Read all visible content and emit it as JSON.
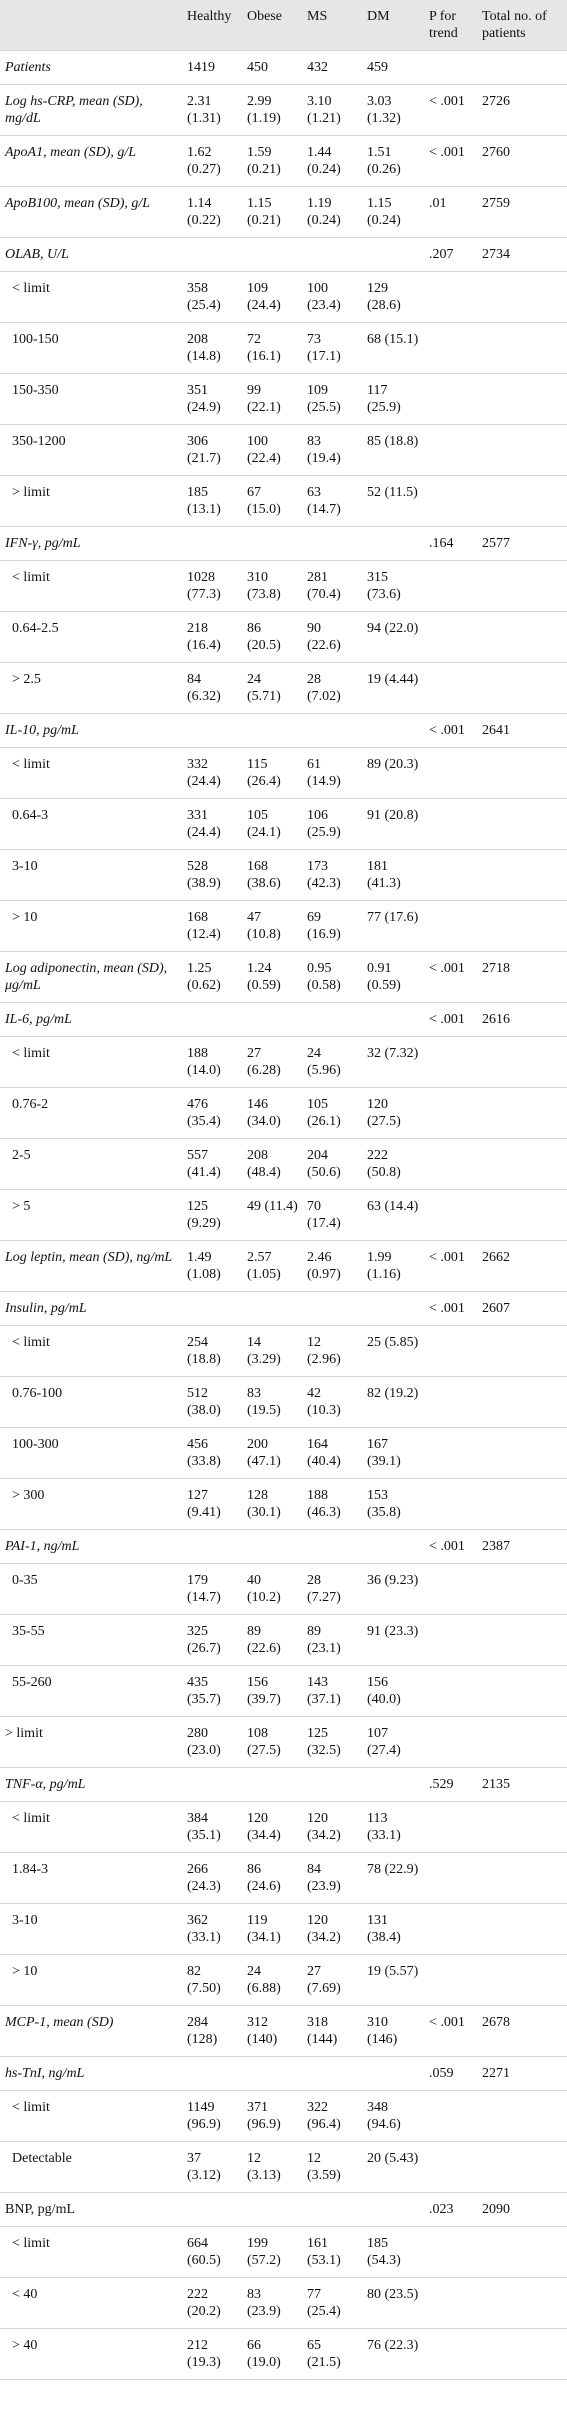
{
  "table": {
    "header": [
      "Healthy",
      "Obese",
      "MS",
      "DM",
      "P for trend",
      "Total no. of patients"
    ],
    "rows": [
      {
        "label": "Patients",
        "italic": true,
        "cells": [
          "1419",
          "450",
          "432",
          "459",
          null,
          null
        ]
      },
      {
        "label": "Log hs-CRP, mean (SD), mg/dL",
        "italic": true,
        "cells": [
          "2.31 (1.31)",
          "2.99 (1.19)",
          "3.10 (1.21)",
          "3.03 (1.32)",
          "< .001",
          "2726"
        ]
      },
      {
        "label": "ApoA1, mean (SD), g/L",
        "italic": true,
        "cells": [
          "1.62 (0.27)",
          "1.59 (0.21)",
          "1.44 (0.24)",
          "1.51 (0.26)",
          "< .001",
          "2760"
        ]
      },
      {
        "label": "ApoB100, mean (SD), g/L",
        "italic": true,
        "cells": [
          "1.14 (0.22)",
          "1.15 (0.21)",
          "1.19 (0.24)",
          "1.15 (0.24)",
          ".01",
          "2759"
        ]
      },
      {
        "label": "OLAB, U/L",
        "italic": true,
        "cells": [
          null,
          null,
          null,
          null,
          ".207",
          "2734"
        ]
      },
      {
        "label": "< limit",
        "sub": true,
        "cells": [
          "358 (25.4)",
          "109 (24.4)",
          "100 (23.4)",
          "129 (28.6)",
          null,
          null
        ]
      },
      {
        "label": "100-150",
        "sub": true,
        "cells": [
          "208 (14.8)",
          "72 (16.1)",
          "73 (17.1)",
          "68 (15.1)",
          null,
          null
        ]
      },
      {
        "label": "150-350",
        "sub": true,
        "cells": [
          "351 (24.9)",
          "99 (22.1)",
          "109 (25.5)",
          "117 (25.9)",
          null,
          null
        ]
      },
      {
        "label": "350-1200",
        "sub": true,
        "cells": [
          "306 (21.7)",
          "100 (22.4)",
          "83 (19.4)",
          "85 (18.8)",
          null,
          null
        ]
      },
      {
        "label": "> limit",
        "sub": true,
        "cells": [
          "185 (13.1)",
          "67 (15.0)",
          "63 (14.7)",
          "52 (11.5)",
          null,
          null
        ]
      },
      {
        "label": "IFN-γ, pg/mL",
        "italic": true,
        "cells": [
          null,
          null,
          null,
          null,
          ".164",
          "2577"
        ]
      },
      {
        "label": "< limit",
        "sub": true,
        "cells": [
          "1028 (77.3)",
          "310 (73.8)",
          "281 (70.4)",
          "315 (73.6)",
          null,
          null
        ]
      },
      {
        "label": "0.64-2.5",
        "sub": true,
        "cells": [
          "218 (16.4)",
          "86 (20.5)",
          "90 (22.6)",
          "94 (22.0)",
          null,
          null
        ]
      },
      {
        "label": "> 2.5",
        "sub": true,
        "cells": [
          "84 (6.32)",
          "24 (5.71)",
          "28 (7.02)",
          "19 (4.44)",
          null,
          null
        ]
      },
      {
        "label": "IL-10, pg/mL",
        "italic": true,
        "cells": [
          null,
          null,
          null,
          null,
          "< .001",
          "2641"
        ]
      },
      {
        "label": "< limit",
        "sub": true,
        "cells": [
          "332 (24.4)",
          "115 (26.4)",
          "61 (14.9)",
          "89 (20.3)",
          null,
          null
        ]
      },
      {
        "label": "0.64-3",
        "sub": true,
        "cells": [
          "331 (24.4)",
          "105 (24.1)",
          "106 (25.9)",
          "91 (20.8)",
          null,
          null
        ]
      },
      {
        "label": "3-10",
        "sub": true,
        "cells": [
          "528 (38.9)",
          "168 (38.6)",
          "173 (42.3)",
          "181 (41.3)",
          null,
          null
        ]
      },
      {
        "label": "> 10",
        "sub": true,
        "cells": [
          "168 (12.4)",
          "47 (10.8)",
          "69 (16.9)",
          "77 (17.6)",
          null,
          null
        ]
      },
      {
        "label": "Log adiponectin, mean (SD), μg/mL",
        "italic": true,
        "cells": [
          "1.25 (0.62)",
          "1.24 (0.59)",
          "0.95 (0.58)",
          "0.91 (0.59)",
          "< .001",
          "2718"
        ]
      },
      {
        "label": "IL-6, pg/mL",
        "italic": true,
        "cells": [
          null,
          null,
          null,
          null,
          "< .001",
          "2616"
        ]
      },
      {
        "label": "< limit",
        "sub": true,
        "cells": [
          "188 (14.0)",
          "27 (6.28)",
          "24 (5.96)",
          "32 (7.32)",
          null,
          null
        ]
      },
      {
        "label": "0.76-2",
        "sub": true,
        "cells": [
          "476 (35.4)",
          "146 (34.0)",
          "105 (26.1)",
          "120 (27.5)",
          null,
          null
        ]
      },
      {
        "label": "2-5",
        "sub": true,
        "cells": [
          "557 (41.4)",
          "208 (48.4)",
          "204 (50.6)",
          "222 (50.8)",
          null,
          null
        ]
      },
      {
        "label": "> 5",
        "sub": true,
        "cells": [
          "125 (9.29)",
          "49 (11.4)",
          "70 (17.4)",
          "63 (14.4)",
          null,
          null
        ]
      },
      {
        "label": "Log leptin, mean (SD), ng/mL",
        "italic": true,
        "cells": [
          "1.49 (1.08)",
          "2.57 (1.05)",
          "2.46 (0.97)",
          "1.99 (1.16)",
          "< .001",
          "2662"
        ]
      },
      {
        "label": "Insulin, pg/mL",
        "italic": true,
        "cells": [
          null,
          null,
          null,
          null,
          "< .001",
          "2607"
        ]
      },
      {
        "label": "< limit",
        "sub": true,
        "cells": [
          "254 (18.8)",
          "14 (3.29)",
          "12 (2.96)",
          "25 (5.85)",
          null,
          null
        ]
      },
      {
        "label": "0.76-100",
        "sub": true,
        "cells": [
          "512 (38.0)",
          "83 (19.5)",
          "42 (10.3)",
          "82 (19.2)",
          null,
          null
        ]
      },
      {
        "label": "100-300",
        "sub": true,
        "cells": [
          "456 (33.8)",
          "200 (47.1)",
          "164 (40.4)",
          "167 (39.1)",
          null,
          null
        ]
      },
      {
        "label": "> 300",
        "sub": true,
        "cells": [
          "127 (9.41)",
          "128 (30.1)",
          "188 (46.3)",
          "153 (35.8)",
          null,
          null
        ]
      },
      {
        "label": "PAI-1, ng/mL",
        "italic": true,
        "cells": [
          null,
          null,
          null,
          null,
          "< .001",
          "2387"
        ]
      },
      {
        "label": "0-35",
        "sub": true,
        "cells": [
          "179 (14.7)",
          "40 (10.2)",
          "28 (7.27)",
          "36 (9.23)",
          null,
          null
        ]
      },
      {
        "label": "35-55",
        "sub": true,
        "cells": [
          "325 (26.7)",
          "89 (22.6)",
          "89 (23.1)",
          "91 (23.3)",
          null,
          null
        ]
      },
      {
        "label": "55-260",
        "sub": true,
        "cells": [
          "435 (35.7)",
          "156 (39.7)",
          "143 (37.1)",
          "156 (40.0)",
          null,
          null
        ]
      },
      {
        "label": "> limit",
        "cells": [
          "280 (23.0)",
          "108 (27.5)",
          "125 (32.5)",
          "107 (27.4)",
          null,
          null
        ]
      },
      {
        "label": "TNF-α, pg/mL",
        "italic": true,
        "cells": [
          null,
          null,
          null,
          null,
          ".529",
          "2135"
        ]
      },
      {
        "label": "< limit",
        "sub": true,
        "cells": [
          "384 (35.1)",
          "120 (34.4)",
          "120 (34.2)",
          "113 (33.1)",
          null,
          null
        ]
      },
      {
        "label": "1.84-3",
        "sub": true,
        "cells": [
          "266 (24.3)",
          "86 (24.6)",
          "84 (23.9)",
          "78 (22.9)",
          null,
          null
        ]
      },
      {
        "label": "3-10",
        "sub": true,
        "cells": [
          "362 (33.1)",
          "119 (34.1)",
          "120 (34.2)",
          "131 (38.4)",
          null,
          null
        ]
      },
      {
        "label": "> 10",
        "sub": true,
        "cells": [
          "82 (7.50)",
          "24 (6.88)",
          "27 (7.69)",
          "19 (5.57)",
          null,
          null
        ]
      },
      {
        "label": "MCP-1, mean (SD)",
        "italic": true,
        "cells": [
          "284 (128)",
          "312 (140)",
          "318 (144)",
          "310 (146)",
          "< .001",
          "2678"
        ]
      },
      {
        "label": "hs-TnI, ng/mL",
        "italic": true,
        "cells": [
          null,
          null,
          null,
          null,
          ".059",
          "2271"
        ]
      },
      {
        "label": "< limit",
        "sub": true,
        "cells": [
          "1149 (96.9)",
          "371 (96.9)",
          "322 (96.4)",
          "348 (94.6)",
          null,
          null
        ]
      },
      {
        "label": "Detectable",
        "sub": true,
        "cells": [
          "37 (3.12)",
          "12 (3.13)",
          "12 (3.59)",
          "20 (5.43)",
          null,
          null
        ]
      },
      {
        "label": "BNP, pg/mL",
        "cells": [
          null,
          null,
          null,
          null,
          ".023",
          "2090"
        ]
      },
      {
        "label": "< limit",
        "sub": true,
        "cells": [
          "664 (60.5)",
          "199 (57.2)",
          "161 (53.1)",
          "185 (54.3)",
          null,
          null
        ]
      },
      {
        "label": "< 40",
        "sub": true,
        "cells": [
          "222 (20.2)",
          "83 (23.9)",
          "77 (25.4)",
          "80 (23.5)",
          null,
          null
        ]
      },
      {
        "label": "> 40",
        "sub": true,
        "cells": [
          "212 (19.3)",
          "66 (19.0)",
          "65 (21.5)",
          "76 (22.3)",
          null,
          null
        ]
      }
    ]
  }
}
